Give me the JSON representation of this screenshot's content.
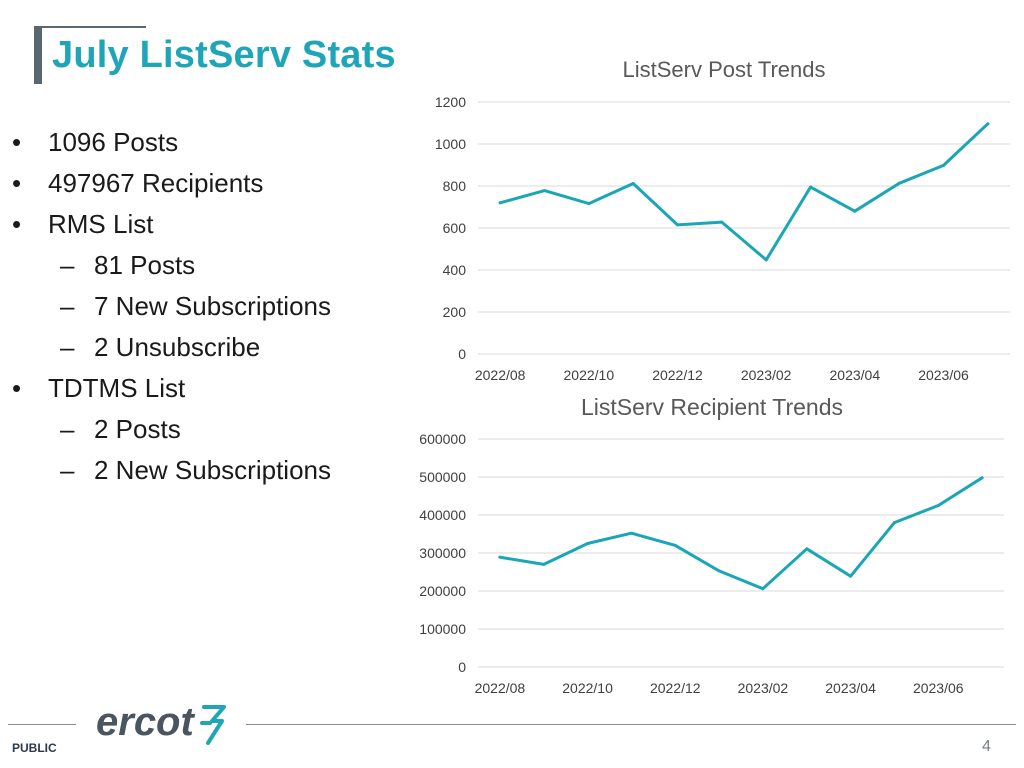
{
  "slide": {
    "title": "July ListServ Stats",
    "bullets": [
      {
        "level": 1,
        "text": "1096 Posts"
      },
      {
        "level": 1,
        "text": "497967 Recipients"
      },
      {
        "level": 1,
        "text": "RMS List"
      },
      {
        "level": 2,
        "text": "81 Posts"
      },
      {
        "level": 2,
        "text": "7 New Subscriptions"
      },
      {
        "level": 2,
        "text": "2 Unsubscribe"
      },
      {
        "level": 1,
        "text": "TDTMS List"
      },
      {
        "level": 2,
        "text": "2 Posts"
      },
      {
        "level": 2,
        "text": "2 New Subscriptions"
      }
    ],
    "bullet_l1": "•",
    "bullet_l2": "–"
  },
  "footer": {
    "logo_text": "ercot",
    "classification": "PUBLIC",
    "page_number": "4"
  },
  "chart_data": [
    {
      "type": "line",
      "title": "ListServ Post Trends",
      "x": [
        "2022/08",
        "2022/09",
        "2022/10",
        "2022/11",
        "2022/12",
        "2023/01",
        "2023/02",
        "2023/03",
        "2023/04",
        "2023/05",
        "2023/06",
        "2023/07"
      ],
      "x_tick_labels": [
        "2022/08",
        "2022/10",
        "2022/12",
        "2023/02",
        "2023/04",
        "2023/06"
      ],
      "series": [
        {
          "values": [
            720,
            778,
            716,
            812,
            615,
            628,
            448,
            795,
            680,
            813,
            898,
            1096
          ]
        }
      ],
      "ylim": [
        0,
        1200
      ],
      "yticks": [
        0,
        200,
        400,
        600,
        800,
        1000,
        1200
      ],
      "grid": true,
      "line_color": "#1aa6b7"
    },
    {
      "type": "line",
      "title": "ListServ Recipient Trends",
      "x": [
        "2022/08",
        "2022/09",
        "2022/10",
        "2022/11",
        "2022/12",
        "2023/01",
        "2023/02",
        "2023/03",
        "2023/04",
        "2023/05",
        "2023/06",
        "2023/07"
      ],
      "x_tick_labels": [
        "2022/08",
        "2022/10",
        "2022/12",
        "2023/02",
        "2023/04",
        "2023/06"
      ],
      "series": [
        {
          "values": [
            289000,
            270000,
            325000,
            352000,
            320000,
            253000,
            206000,
            311000,
            239000,
            380000,
            425000,
            497967
          ]
        }
      ],
      "ylim": [
        0,
        600000
      ],
      "yticks": [
        0,
        100000,
        200000,
        300000,
        400000,
        500000,
        600000
      ],
      "grid": true,
      "line_color": "#1aa6b7"
    }
  ]
}
